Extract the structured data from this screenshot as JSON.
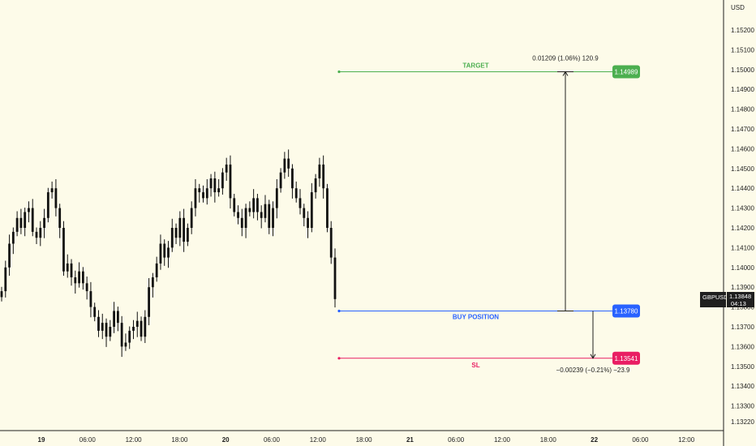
{
  "symbol": "GBPUSD",
  "currency": "USD",
  "current_price": "1.13848",
  "countdown": "04:13",
  "colors": {
    "background": "#fdfbe9",
    "candle": "#111111",
    "target": "#4caf50",
    "entry": "#2962ff",
    "stop": "#e91e63",
    "measure": "#1f1f1f"
  },
  "chart_data": {
    "type": "candlestick",
    "y_axis": {
      "ylim": [
        1.1317,
        1.153
      ],
      "ticks": [
        "1.15200",
        "1.15100",
        "1.15000",
        "1.14900",
        "1.14800",
        "1.14700",
        "1.14600",
        "1.14500",
        "1.14400",
        "1.14300",
        "1.14200",
        "1.14100",
        "1.14000",
        "1.13900",
        "1.13800",
        "1.13700",
        "1.13600",
        "1.13500",
        "1.13400",
        "1.13300",
        "1.13220"
      ],
      "tick_values": [
        1.152,
        1.151,
        1.15,
        1.149,
        1.148,
        1.147,
        1.146,
        1.145,
        1.144,
        1.143,
        1.142,
        1.141,
        1.14,
        1.139,
        1.138,
        1.137,
        1.136,
        1.135,
        1.134,
        1.133,
        1.1322
      ]
    },
    "x_axis": {
      "ticks": [
        {
          "label": "19",
          "t": 0,
          "bold": true
        },
        {
          "label": "06:00",
          "t": 6
        },
        {
          "label": "12:00",
          "t": 12
        },
        {
          "label": "18:00",
          "t": 18
        },
        {
          "label": "20",
          "t": 24,
          "bold": true
        },
        {
          "label": "06:00",
          "t": 30
        },
        {
          "label": "12:00",
          "t": 36
        },
        {
          "label": "18:00",
          "t": 42
        },
        {
          "label": "21",
          "t": 48,
          "bold": true
        },
        {
          "label": "06:00",
          "t": 54
        },
        {
          "label": "12:00",
          "t": 60
        },
        {
          "label": "18:00",
          "t": 66
        },
        {
          "label": "22",
          "t": 72,
          "bold": true
        },
        {
          "label": "06:00",
          "t": 78
        },
        {
          "label": "12:00",
          "t": 84
        }
      ]
    },
    "series_close": [
      1.1388,
      1.14,
      1.1412,
      1.1418,
      1.1425,
      1.142,
      1.1428,
      1.143,
      1.1418,
      1.1415,
      1.142,
      1.1425,
      1.1438,
      1.144,
      1.143,
      1.142,
      1.1398,
      1.1402,
      1.1395,
      1.1392,
      1.1398,
      1.1392,
      1.1388,
      1.138,
      1.1375,
      1.1368,
      1.1372,
      1.1365,
      1.137,
      1.1378,
      1.1372,
      1.136,
      1.1362,
      1.1368,
      1.137,
      1.1373,
      1.1365,
      1.1375,
      1.139,
      1.1395,
      1.1402,
      1.1412,
      1.1405,
      1.141,
      1.142,
      1.1415,
      1.1425,
      1.1413,
      1.142,
      1.143,
      1.144,
      1.1438,
      1.1435,
      1.144,
      1.1445,
      1.1438,
      1.144,
      1.1448,
      1.1452,
      1.1435,
      1.1428,
      1.1425,
      1.142,
      1.143,
      1.1428,
      1.1435,
      1.1428,
      1.1425,
      1.1432,
      1.142,
      1.143,
      1.144,
      1.1448,
      1.1455,
      1.145,
      1.144,
      1.1435,
      1.143,
      1.1425,
      1.142,
      1.1438,
      1.1445,
      1.1452,
      1.144,
      1.142,
      1.1405,
      1.1384
    ],
    "levels": {
      "target": {
        "label": "TARGET",
        "price": 1.14989,
        "price_label": "1.14989"
      },
      "entry": {
        "label": "BUY POSITION",
        "price": 1.1378,
        "price_label": "1.13780"
      },
      "stop": {
        "label": "SL",
        "price": 1.13541,
        "price_label": "1.13541"
      }
    },
    "measures": {
      "target": "0.01209 (1.06%) 120.9",
      "stop": "−0.00239 (−0.21%) −23.9"
    }
  }
}
